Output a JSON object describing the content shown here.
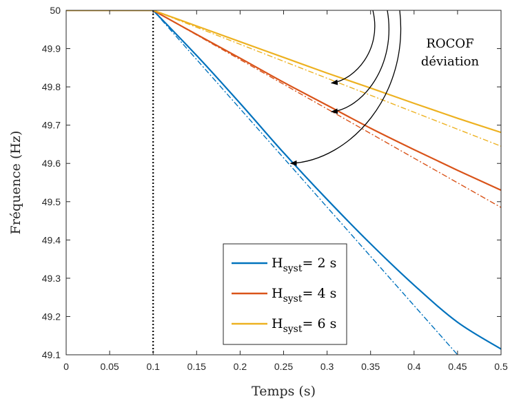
{
  "chart_data": {
    "type": "line",
    "title": "",
    "xlabel": "Temps (s)",
    "ylabel": "Fréquence (Hz)",
    "xlim": [
      0,
      0.5
    ],
    "ylim": [
      49.1,
      50
    ],
    "x_ticks": [
      "0",
      "0.05",
      "0.1",
      "0.15",
      "0.2",
      "0.25",
      "0.3",
      "0.35",
      "0.4",
      "0.45",
      "0.5"
    ],
    "y_ticks": [
      "49.1",
      "49.2",
      "49.3",
      "49.4",
      "49.5",
      "49.6",
      "49.7",
      "49.8",
      "49.9",
      "50"
    ],
    "grid": false,
    "legend_position": "bottom-center",
    "event_marker": {
      "x": 0.1,
      "style": "dotted",
      "color": "#000000"
    },
    "series": [
      {
        "name": "H_syst = 2 s",
        "legend_main": "H",
        "legend_sub": "syst",
        "legend_rest": "= 2 s",
        "color": "#0072BD",
        "style": "solid",
        "x": [
          0,
          0.1,
          0.15,
          0.2,
          0.25,
          0.3,
          0.35,
          0.4,
          0.45,
          0.5
        ],
        "y": [
          50,
          50,
          49.882,
          49.757,
          49.628,
          49.506,
          49.39,
          49.282,
          49.185,
          49.115
        ]
      },
      {
        "name": "H_syst = 2 s (ROCOF)",
        "color": "#0072BD",
        "style": "dashdot",
        "x": [
          0,
          0.1,
          0.45
        ],
        "y": [
          50,
          50,
          49.1
        ]
      },
      {
        "name": "H_syst = 4 s",
        "legend_main": "H",
        "legend_sub": "syst",
        "legend_rest": "= 4 s",
        "color": "#D95319",
        "style": "solid",
        "x": [
          0,
          0.1,
          0.15,
          0.2,
          0.25,
          0.3,
          0.35,
          0.4,
          0.45,
          0.5
        ],
        "y": [
          50,
          50,
          49.937,
          49.875,
          49.812,
          49.752,
          49.692,
          49.636,
          49.582,
          49.53
        ]
      },
      {
        "name": "H_syst = 4 s (ROCOF)",
        "color": "#D95319",
        "style": "dashdot",
        "x": [
          0,
          0.1,
          0.5
        ],
        "y": [
          50,
          50,
          49.485
        ]
      },
      {
        "name": "H_syst = 6 s",
        "legend_main": "H",
        "legend_sub": "syst",
        "legend_rest": "= 6 s",
        "color": "#EDB120",
        "style": "solid",
        "x": [
          0,
          0.1,
          0.15,
          0.2,
          0.25,
          0.3,
          0.35,
          0.4,
          0.45,
          0.5
        ],
        "y": [
          50,
          50,
          49.959,
          49.918,
          49.877,
          49.836,
          49.797,
          49.757,
          49.718,
          49.681
        ]
      },
      {
        "name": "H_syst = 6 s (ROCOF)",
        "color": "#EDB120",
        "style": "dashdot",
        "x": [
          0,
          0.1,
          0.5
        ],
        "y": [
          50,
          50,
          49.645
        ]
      }
    ],
    "annotation": {
      "lines": [
        "ROCOF",
        "déviation"
      ],
      "arrow_targets": [
        {
          "x": 0.305,
          "y": 49.81
        },
        {
          "x": 0.305,
          "y": 49.735
        },
        {
          "x": 0.258,
          "y": 49.6
        }
      ]
    }
  }
}
